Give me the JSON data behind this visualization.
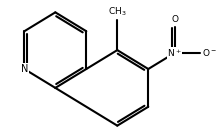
{
  "bg_color": "#ffffff",
  "bond_color": "#000000",
  "text_color": "#000000",
  "line_width": 1.5,
  "font_size": 7,
  "figsize": [
    2.24,
    1.38
  ],
  "dpi": 100
}
